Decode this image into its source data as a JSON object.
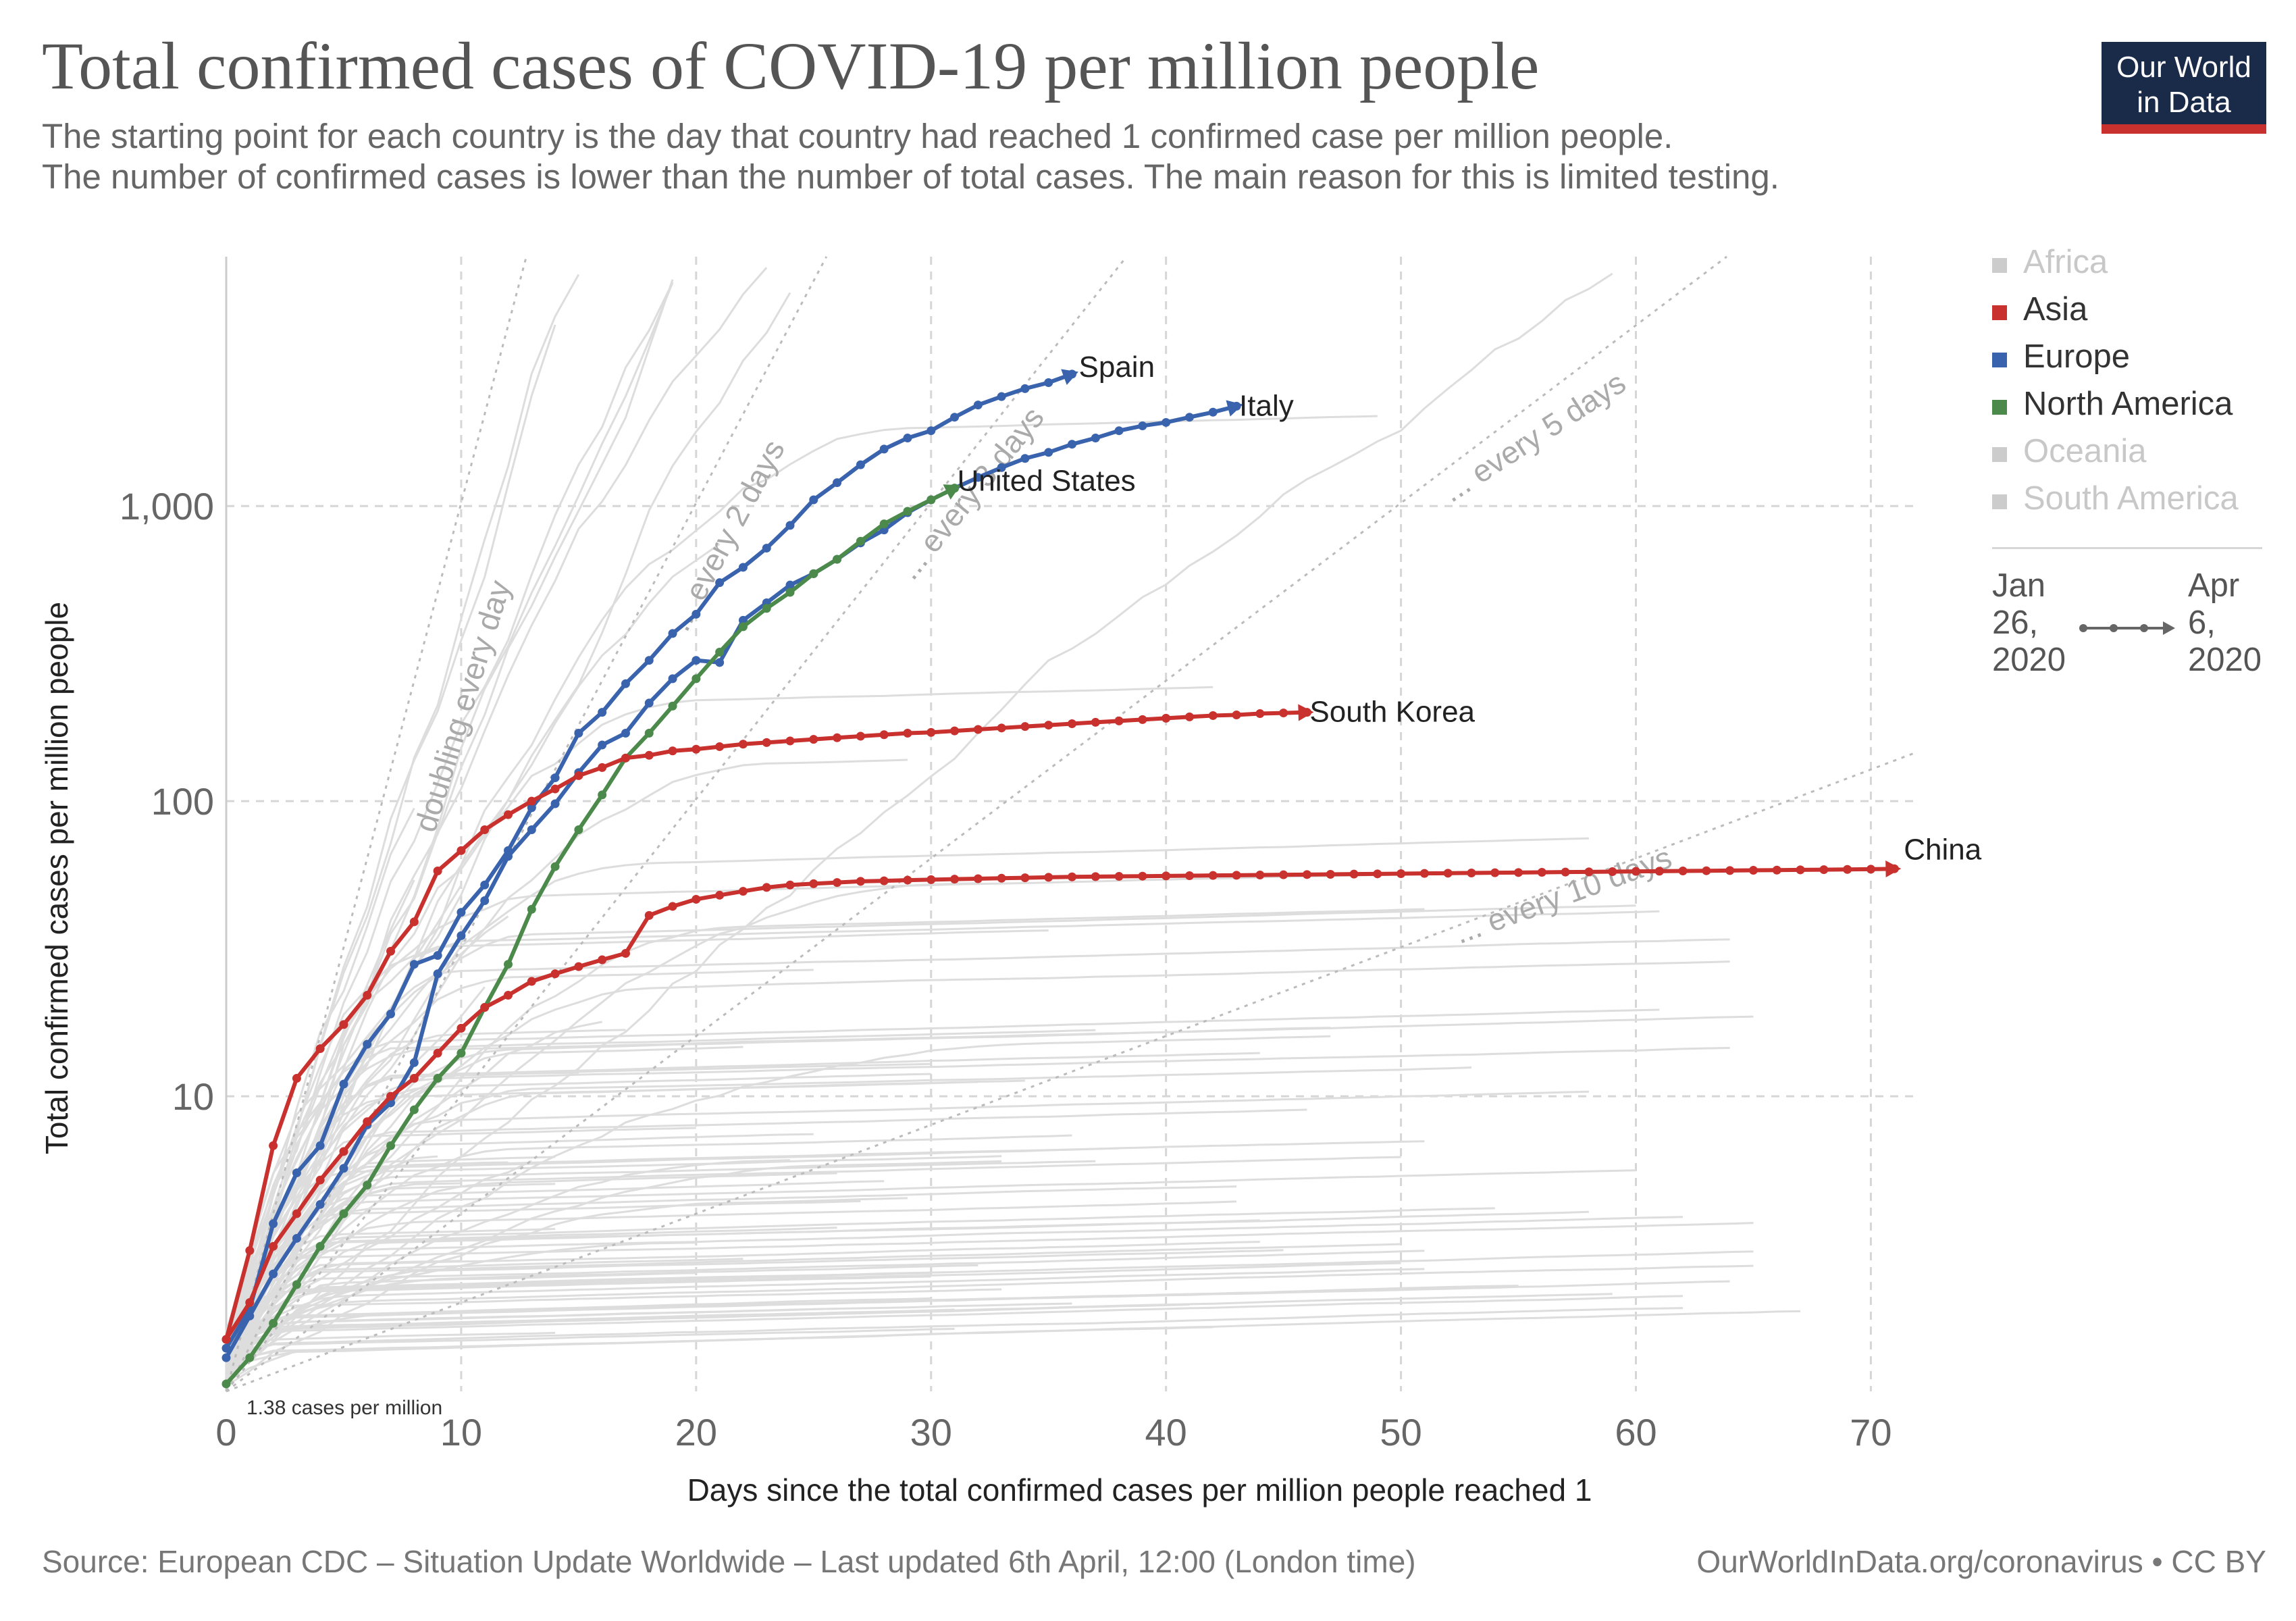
{
  "title": "Total confirmed cases of COVID-19 per million people",
  "subtitle_line1": "The starting point for each country is the day that country had reached 1 confirmed case per million people.",
  "subtitle_line2": " The number of confirmed cases is lower than the number of total cases. The main reason for this is limited testing.",
  "logo_line1": "Our World",
  "logo_line2": "in Data",
  "footer_source": "Source: European CDC – Situation Update Worldwide – Last updated 6th April, 12:00 (London time)",
  "footer_link": "OurWorldInData.org/coronavirus • CC BY",
  "colors": {
    "Asia": "#c8312d",
    "Europe": "#3a63ad",
    "North America": "#4b8a4a",
    "inactive": "#cccccc",
    "background_lines": "#d8d8d8"
  },
  "legend": [
    {
      "label": "Africa",
      "active": false,
      "color": "#cccccc"
    },
    {
      "label": "Asia",
      "active": true,
      "color": "#c8312d"
    },
    {
      "label": "Europe",
      "active": true,
      "color": "#3a63ad"
    },
    {
      "label": "North America",
      "active": true,
      "color": "#4b8a4a"
    },
    {
      "label": "Oceania",
      "active": false,
      "color": "#cccccc"
    },
    {
      "label": "South America",
      "active": false,
      "color": "#cccccc"
    }
  ],
  "time_range": {
    "start_month": "Jan",
    "start_day": "26,",
    "start_year": "2020",
    "end_month": "Apr",
    "end_day": "6,",
    "end_year": "2020"
  },
  "chart_data": {
    "type": "line",
    "xlabel": "Days since the total confirmed cases per million people reached 1",
    "ylabel": "Total confirmed cases per million people",
    "x_ticks": [
      "0",
      "10",
      "20",
      "30",
      "40",
      "50",
      "60",
      "70"
    ],
    "y_ticks": [
      "10",
      "100",
      "1,000"
    ],
    "xlim": [
      0,
      72
    ],
    "ylim": [
      1,
      7000
    ],
    "y_scale": "log",
    "grid": true,
    "legend_position": "right",
    "start_annotation": "1.38 cases per million",
    "doubling_lines": [
      {
        "label": "doubling every day",
        "days": 1
      },
      {
        "label": "... every 2 days",
        "days": 2
      },
      {
        "label": "... every 3 days",
        "days": 3
      },
      {
        "label": "... every 5 days",
        "days": 5
      },
      {
        "label": "... every 10 days",
        "days": 10
      }
    ],
    "series": [
      {
        "name": "Spain",
        "region": "Europe",
        "x": [
          0,
          1,
          2,
          3,
          4,
          5,
          6,
          7,
          8,
          9,
          10,
          11,
          12,
          13,
          14,
          15,
          16,
          17,
          18,
          19,
          20,
          21,
          22,
          23,
          24,
          25,
          26,
          27,
          28,
          29,
          30,
          31,
          32,
          33,
          34,
          35,
          36
        ],
        "y": [
          1.4,
          1.9,
          3.7,
          5.5,
          6.8,
          11,
          15,
          19,
          28,
          30,
          42,
          52,
          68,
          95,
          120,
          170,
          200,
          250,
          300,
          370,
          430,
          550,
          620,
          720,
          860,
          1050,
          1200,
          1380,
          1560,
          1700,
          1800,
          2000,
          2200,
          2350,
          2500,
          2620,
          2800
        ]
      },
      {
        "name": "Italy",
        "region": "Europe",
        "x": [
          0,
          1,
          2,
          3,
          4,
          5,
          6,
          7,
          8,
          9,
          10,
          11,
          12,
          13,
          14,
          15,
          16,
          17,
          18,
          19,
          20,
          21,
          22,
          23,
          24,
          25,
          26,
          27,
          28,
          29,
          30,
          31,
          32,
          33,
          34,
          35,
          36,
          37,
          38,
          39,
          40,
          41,
          42,
          43
        ],
        "y": [
          1.3,
          1.8,
          2.5,
          3.3,
          4.3,
          5.7,
          8,
          9.5,
          13,
          26,
          35,
          46,
          65,
          80,
          98,
          125,
          155,
          170,
          215,
          260,
          300,
          295,
          410,
          470,
          540,
          590,
          660,
          750,
          830,
          950,
          1050,
          1150,
          1250,
          1350,
          1450,
          1520,
          1620,
          1700,
          1800,
          1870,
          1920,
          2000,
          2080,
          2180
        ]
      },
      {
        "name": "United States",
        "region": "North America",
        "x": [
          0,
          1,
          2,
          3,
          4,
          5,
          6,
          7,
          8,
          9,
          10,
          11,
          12,
          13,
          14,
          15,
          16,
          17,
          18,
          19,
          20,
          21,
          22,
          23,
          24,
          25,
          26,
          27,
          28,
          29,
          30,
          31
        ],
        "y": [
          1.06,
          1.3,
          1.7,
          2.3,
          3.1,
          4,
          5,
          6.8,
          9,
          11.5,
          14,
          20,
          28,
          43,
          60,
          80,
          105,
          140,
          170,
          210,
          260,
          320,
          390,
          450,
          510,
          590,
          660,
          760,
          870,
          960,
          1050,
          1150
        ]
      },
      {
        "name": "South Korea",
        "region": "Asia",
        "x": [
          0,
          1,
          2,
          3,
          4,
          5,
          6,
          7,
          8,
          9,
          10,
          11,
          12,
          13,
          14,
          15,
          16,
          17,
          18,
          19,
          20,
          21,
          22,
          23,
          24,
          25,
          26,
          27,
          28,
          29,
          30,
          31,
          32,
          33,
          34,
          35,
          36,
          37,
          38,
          39,
          40,
          41,
          42,
          43,
          44,
          45,
          46
        ],
        "y": [
          1.5,
          3,
          6.8,
          11.5,
          14.5,
          17.5,
          22,
          31,
          39,
          58,
          68,
          80,
          90,
          100,
          110,
          122,
          130,
          140,
          143,
          148,
          150,
          153,
          156,
          158,
          160,
          162,
          164,
          166,
          168,
          170,
          171,
          173,
          175,
          177,
          179,
          181,
          183,
          185,
          187,
          189,
          191,
          193,
          195,
          196,
          198,
          199,
          200
        ]
      },
      {
        "name": "China",
        "region": "Asia",
        "x": [
          0,
          1,
          2,
          3,
          4,
          5,
          6,
          7,
          8,
          9,
          10,
          11,
          12,
          13,
          14,
          15,
          16,
          17,
          18,
          19,
          20,
          21,
          22,
          23,
          24,
          25,
          26,
          27,
          28,
          29,
          30,
          31,
          32,
          33,
          34,
          35,
          36,
          37,
          38,
          39,
          40,
          41,
          42,
          43,
          44,
          45,
          46,
          47,
          48,
          49,
          50,
          51,
          52,
          53,
          54,
          55,
          56,
          57,
          58,
          59,
          60,
          61,
          62,
          63,
          64,
          65,
          66,
          67,
          68,
          69,
          70,
          71
        ],
        "y": [
          1.5,
          2,
          3.1,
          4,
          5.2,
          6.5,
          8.2,
          10,
          11.5,
          14,
          17,
          20,
          22,
          24.5,
          26,
          27.5,
          29,
          30.5,
          41,
          44,
          46.5,
          48,
          49.5,
          51,
          52,
          52.5,
          53,
          53.5,
          53.7,
          54,
          54.2,
          54.4,
          54.6,
          54.8,
          55,
          55.2,
          55.4,
          55.5,
          55.6,
          55.7,
          55.8,
          55.9,
          56,
          56.1,
          56.2,
          56.3,
          56.4,
          56.5,
          56.6,
          56.7,
          56.8,
          56.9,
          57,
          57.1,
          57.2,
          57.3,
          57.4,
          57.5,
          57.6,
          57.7,
          57.8,
          57.9,
          58,
          58.1,
          58.2,
          58.3,
          58.4,
          58.5,
          58.6,
          58.7,
          58.8,
          59
        ]
      }
    ]
  }
}
